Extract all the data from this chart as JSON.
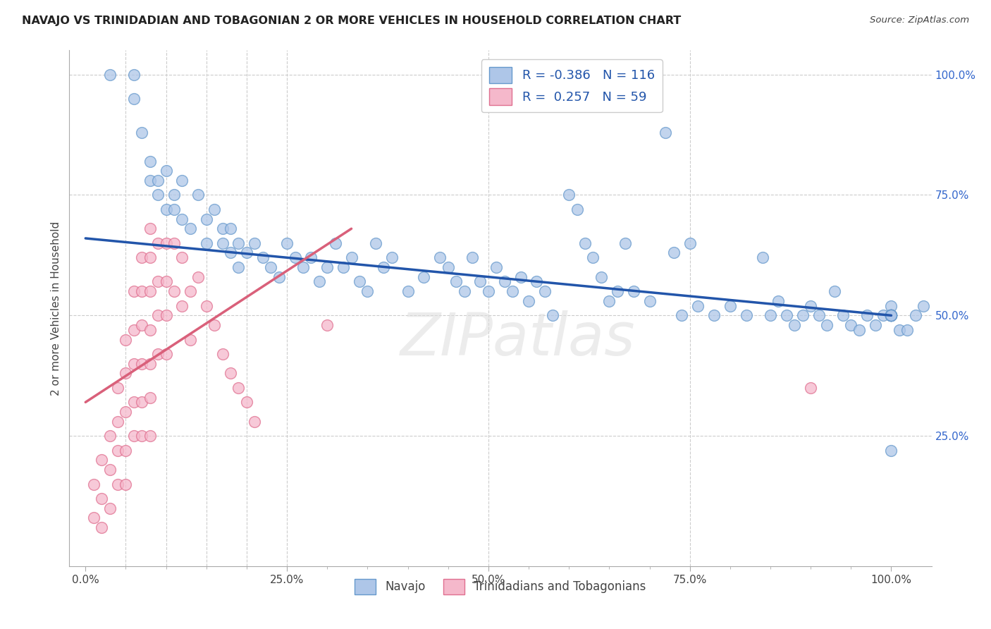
{
  "title": "NAVAJO VS TRINIDADIAN AND TOBAGONIAN 2 OR MORE VEHICLES IN HOUSEHOLD CORRELATION CHART",
  "source": "Source: ZipAtlas.com",
  "xlabel_ticks": [
    "0.0%",
    "",
    "",
    "",
    "",
    "25.0%",
    "",
    "",
    "",
    "",
    "50.0%",
    "",
    "",
    "",
    "",
    "75.0%",
    "",
    "",
    "",
    "",
    "100.0%"
  ],
  "xlabel_vals": [
    0,
    5,
    10,
    15,
    20,
    25,
    30,
    35,
    40,
    45,
    50,
    55,
    60,
    65,
    70,
    75,
    80,
    85,
    90,
    95,
    100
  ],
  "xlabel_major_ticks": [
    0,
    25,
    50,
    75,
    100
  ],
  "xlabel_major_labels": [
    "0.0%",
    "25.0%",
    "50.0%",
    "75.0%",
    "100.0%"
  ],
  "ylabel": "2 or more Vehicles in Household",
  "ylabel_right_ticks": [
    25,
    50,
    75,
    100
  ],
  "ylabel_right_labels": [
    "25.0%",
    "50.0%",
    "75.0%",
    "100.0%"
  ],
  "ylim": [
    -2,
    105
  ],
  "xlim": [
    -2,
    105
  ],
  "navajo_R": -0.386,
  "navajo_N": 116,
  "trini_R": 0.257,
  "trini_N": 59,
  "navajo_color": "#aec6e8",
  "navajo_edge": "#6699cc",
  "trini_color": "#f5b8cb",
  "trini_edge": "#e07090",
  "trend_navajo_color": "#2255aa",
  "trend_trini_color": "#d9607a",
  "watermark": "ZIPatlas",
  "legend_label_navajo": "Navajo",
  "legend_label_trini": "Trinidadians and Tobagonians",
  "grid_color": "#cccccc",
  "background_color": "#ffffff",
  "navajo_x": [
    3,
    6,
    6,
    7,
    8,
    8,
    9,
    9,
    10,
    10,
    11,
    11,
    12,
    12,
    13,
    14,
    15,
    15,
    16,
    17,
    17,
    18,
    18,
    19,
    19,
    20,
    21,
    22,
    23,
    24,
    25,
    26,
    27,
    28,
    29,
    30,
    31,
    32,
    33,
    34,
    35,
    36,
    37,
    38,
    40,
    42,
    44,
    45,
    46,
    47,
    48,
    49,
    50,
    51,
    52,
    53,
    54,
    55,
    56,
    57,
    58,
    60,
    61,
    62,
    63,
    64,
    65,
    66,
    67,
    68,
    70,
    72,
    73,
    74,
    75,
    76,
    78,
    80,
    82,
    84,
    85,
    86,
    87,
    88,
    89,
    90,
    91,
    92,
    93,
    94,
    95,
    96,
    97,
    98,
    99,
    100,
    101,
    102,
    103,
    104,
    100,
    100,
    100,
    100,
    100,
    100,
    100,
    100,
    100,
    100,
    100,
    100,
    100,
    100,
    100,
    100
  ],
  "navajo_y": [
    100,
    100,
    95,
    88,
    82,
    78,
    78,
    75,
    72,
    80,
    75,
    72,
    78,
    70,
    68,
    75,
    70,
    65,
    72,
    68,
    65,
    68,
    63,
    65,
    60,
    63,
    65,
    62,
    60,
    58,
    65,
    62,
    60,
    62,
    57,
    60,
    65,
    60,
    62,
    57,
    55,
    65,
    60,
    62,
    55,
    58,
    62,
    60,
    57,
    55,
    62,
    57,
    55,
    60,
    57,
    55,
    58,
    53,
    57,
    55,
    50,
    75,
    72,
    65,
    62,
    58,
    53,
    55,
    65,
    55,
    53,
    88,
    63,
    50,
    65,
    52,
    50,
    52,
    50,
    62,
    50,
    53,
    50,
    48,
    50,
    52,
    50,
    48,
    55,
    50,
    48,
    47,
    50,
    48,
    50,
    52,
    47,
    47,
    50,
    52,
    50,
    50,
    50,
    50,
    50,
    50,
    50,
    50,
    50,
    50,
    50,
    50,
    50,
    50,
    50,
    22
  ],
  "trini_x": [
    1,
    1,
    2,
    2,
    2,
    3,
    3,
    3,
    4,
    4,
    4,
    4,
    5,
    5,
    5,
    5,
    5,
    6,
    6,
    6,
    6,
    6,
    7,
    7,
    7,
    7,
    7,
    7,
    8,
    8,
    8,
    8,
    8,
    8,
    8,
    9,
    9,
    9,
    9,
    10,
    10,
    10,
    10,
    11,
    11,
    12,
    12,
    13,
    13,
    14,
    15,
    16,
    17,
    18,
    19,
    20,
    21,
    30,
    90
  ],
  "trini_y": [
    15,
    8,
    20,
    12,
    6,
    25,
    18,
    10,
    35,
    28,
    22,
    15,
    45,
    38,
    30,
    22,
    15,
    55,
    47,
    40,
    32,
    25,
    62,
    55,
    48,
    40,
    32,
    25,
    68,
    62,
    55,
    47,
    40,
    33,
    25,
    65,
    57,
    50,
    42,
    65,
    57,
    50,
    42,
    65,
    55,
    62,
    52,
    55,
    45,
    58,
    52,
    48,
    42,
    38,
    35,
    32,
    28,
    48,
    35
  ],
  "trini_trend_x0": 0,
  "trini_trend_y0": 32,
  "trini_trend_x1": 33,
  "trini_trend_y1": 68,
  "navajo_trend_x0": 0,
  "navajo_trend_y0": 66,
  "navajo_trend_x1": 100,
  "navajo_trend_y1": 50
}
